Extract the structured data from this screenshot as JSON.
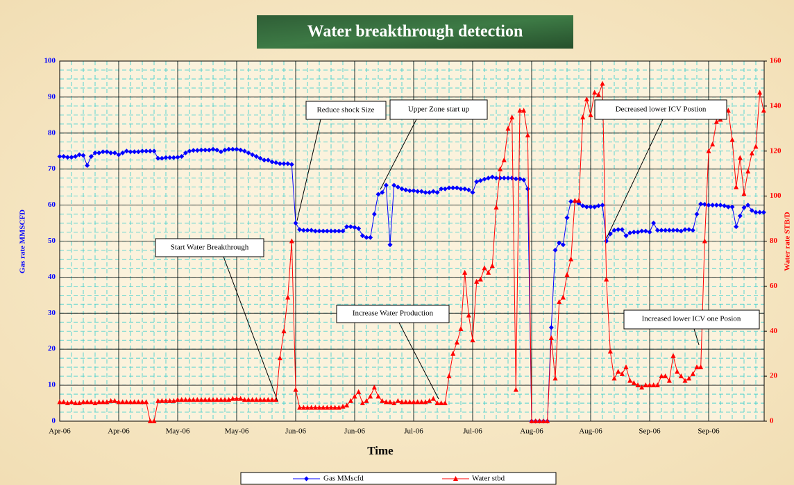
{
  "chart_data": {
    "type": "line",
    "title": "Water breakthrough detection",
    "x_label": "Time",
    "y_label": "Gas rate MMSCFD",
    "y2_label": "Water rate STB/D",
    "annotations": [
      "Start Water Breakthrough",
      "Reduce shock Size",
      "Upper Zone start up",
      "Increase Water Production",
      "Decreased  lower ICV Postion",
      "Increased lower ICV one Posion"
    ],
    "categories": [
      "Apr-06",
      null,
      null,
      null,
      null,
      null,
      null,
      null,
      null,
      null,
      null,
      null,
      null,
      null,
      null,
      "Apr-06",
      null,
      null,
      null,
      null,
      null,
      null,
      null,
      null,
      null,
      null,
      null,
      null,
      null,
      null,
      "May-06",
      null,
      null,
      null,
      null,
      null,
      null,
      null,
      null,
      null,
      null,
      null,
      null,
      null,
      null,
      "May-06",
      null,
      null,
      null,
      null,
      null,
      null,
      null,
      null,
      null,
      null,
      null,
      null,
      null,
      null,
      "Jun-06",
      null,
      null,
      null,
      null,
      null,
      null,
      null,
      null,
      null,
      null,
      null,
      null,
      null,
      null,
      "Jun-06",
      null,
      null,
      null,
      null,
      null,
      null,
      null,
      null,
      null,
      null,
      null,
      null,
      null,
      null,
      "Jul-06",
      null,
      null,
      null,
      null,
      null,
      null,
      null,
      null,
      null,
      null,
      null,
      null,
      null,
      null,
      "Jul-06",
      null,
      null,
      null,
      null,
      null,
      null,
      null,
      null,
      null,
      null,
      null,
      null,
      null,
      null,
      "Aug-06",
      null,
      null,
      null,
      null,
      null,
      null,
      null,
      null,
      null,
      null,
      null,
      null,
      null,
      null,
      "Aug-06",
      null,
      null,
      null,
      null,
      null,
      null,
      null,
      null,
      null,
      null,
      null,
      null,
      null,
      null,
      "Sep-06",
      null,
      null,
      null,
      null,
      null,
      null,
      null,
      null,
      null,
      null,
      null,
      null,
      null,
      null,
      "Sep-06",
      null,
      null,
      null,
      null,
      null,
      null,
      null,
      null,
      null,
      null,
      null,
      null,
      null,
      null
    ],
    "series": [
      {
        "name": "Gas MMscfd",
        "color": "#0000ff",
        "marker": "diamond",
        "axis": "y",
        "values": [
          73.5,
          73.5,
          73.3,
          73.3,
          73.5,
          74,
          73.8,
          71,
          73.5,
          74.5,
          74.5,
          74.8,
          74.8,
          74.5,
          74.5,
          74,
          74.5,
          75,
          74.8,
          74.8,
          74.8,
          75,
          75,
          75,
          75,
          73,
          73,
          73.2,
          73.2,
          73.2,
          73.3,
          73.5,
          74.5,
          75,
          75.2,
          75.2,
          75.3,
          75.3,
          75.3,
          75.5,
          75.3,
          74.8,
          75.3,
          75.5,
          75.5,
          75.5,
          75.3,
          75,
          74.5,
          74,
          73.5,
          73,
          72.5,
          72.5,
          72,
          71.8,
          71.5,
          71.5,
          71.5,
          71.3,
          55,
          53.2,
          53,
          53,
          53,
          52.8,
          52.8,
          52.8,
          52.8,
          52.8,
          52.8,
          52.8,
          52.8,
          54,
          54,
          53.8,
          53.5,
          51.5,
          51,
          51,
          57.5,
          63,
          63.5,
          65.5,
          49,
          65.5,
          65,
          64.5,
          64.2,
          64,
          64,
          63.8,
          63.8,
          63.5,
          63.5,
          63.8,
          63.5,
          64.5,
          64.5,
          64.8,
          64.8,
          64.8,
          64.5,
          64.5,
          64.2,
          63.5,
          66.5,
          66.8,
          67.2,
          67.5,
          67.8,
          67.5,
          67.5,
          67.5,
          67.5,
          67.5,
          67.3,
          67.3,
          67,
          64.5,
          0,
          0,
          0,
          0,
          0,
          26,
          47.5,
          49.5,
          49,
          56.5,
          61,
          61,
          60.5,
          59.8,
          59.5,
          59.5,
          59.5,
          59.8,
          60,
          50,
          52,
          53,
          53.2,
          53.2,
          51.5,
          52.3,
          52.5,
          52.5,
          52.8,
          52.8,
          52.5,
          55,
          53,
          53,
          53,
          53,
          53,
          53,
          52.8,
          53.2,
          53.2,
          53,
          57.5,
          60.3,
          60.2,
          60,
          60,
          60,
          60,
          59.8,
          59.5,
          59.5,
          54,
          57,
          59.3,
          60,
          58.5,
          58,
          58,
          58
        ]
      },
      {
        "name": "Water stbd",
        "color": "#ff0000",
        "marker": "triangle",
        "axis": "y2",
        "values": [
          8.5,
          8.5,
          8,
          8.5,
          8,
          8,
          8.5,
          8.5,
          8.5,
          8,
          8.5,
          8.5,
          8.5,
          9,
          9,
          8.5,
          8.5,
          8.5,
          8.5,
          8.5,
          8.5,
          8.5,
          8.5,
          0,
          0,
          9,
          9,
          9,
          9,
          9,
          9.5,
          9.5,
          9.5,
          9.5,
          9.5,
          9.5,
          9.5,
          9.5,
          9.5,
          9.5,
          9.5,
          9.5,
          9.5,
          9.5,
          10,
          10,
          10,
          9.5,
          9.5,
          9.5,
          9.5,
          9.5,
          9.5,
          9.5,
          9.5,
          9.5,
          28,
          40,
          55,
          80,
          14,
          6,
          6,
          6,
          6,
          6,
          6,
          6,
          6,
          6,
          6,
          6,
          6.5,
          7,
          9,
          11,
          13,
          8,
          9,
          11,
          15,
          11,
          9,
          8.5,
          8.5,
          8,
          9,
          8.5,
          8.5,
          8.5,
          8.5,
          8.5,
          8.5,
          8.5,
          9,
          10,
          8,
          8,
          8,
          20,
          30,
          35,
          41,
          66,
          47,
          36,
          62,
          63,
          68,
          66,
          69,
          95,
          112,
          116,
          130,
          135,
          14,
          138,
          138,
          127,
          0,
          0,
          0,
          0,
          0,
          37,
          19,
          53,
          55,
          65,
          72,
          98,
          98,
          135,
          143,
          136,
          146,
          145,
          150,
          63,
          31,
          19,
          22,
          21,
          24,
          18,
          17,
          16,
          15,
          16,
          16,
          16,
          16,
          20,
          20,
          18,
          29,
          22,
          20,
          18,
          19,
          21,
          24,
          24,
          80,
          120,
          123,
          133,
          134,
          137,
          138,
          125,
          104,
          117,
          101,
          111,
          119,
          122,
          146,
          138
        ]
      }
    ],
    "ylim": [
      0,
      100
    ],
    "yticks": [
      0,
      10,
      20,
      30,
      40,
      50,
      60,
      70,
      80,
      90,
      100
    ],
    "y2lim": [
      0,
      160
    ],
    "y2ticks": [
      0,
      20,
      40,
      60,
      80,
      100,
      120,
      140,
      160
    ],
    "grid": true,
    "legend": "bottom"
  }
}
